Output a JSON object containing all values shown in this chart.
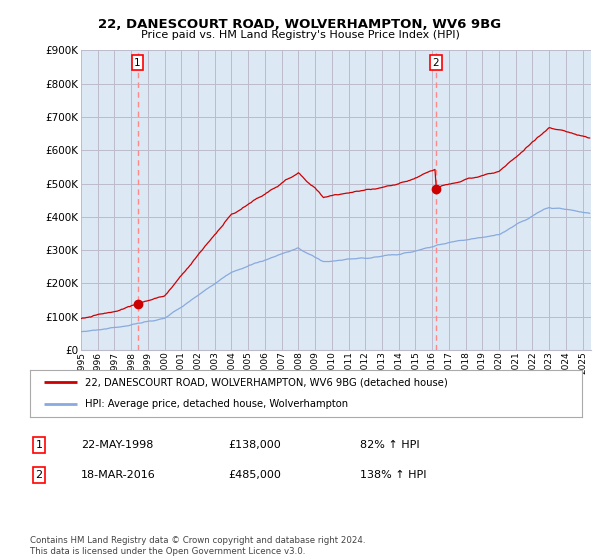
{
  "title_line1": "22, DANESCOURT ROAD, WOLVERHAMPTON, WV6 9BG",
  "title_line2": "Price paid vs. HM Land Registry's House Price Index (HPI)",
  "ylim": [
    0,
    900000
  ],
  "yticks": [
    0,
    100000,
    200000,
    300000,
    400000,
    500000,
    600000,
    700000,
    800000,
    900000
  ],
  "ytick_labels": [
    "£0",
    "£100K",
    "£200K",
    "£300K",
    "£400K",
    "£500K",
    "£600K",
    "£700K",
    "£800K",
    "£900K"
  ],
  "purchase1_date": 1998.38,
  "purchase1_price": 138000,
  "purchase2_date": 2016.21,
  "purchase2_price": 485000,
  "hpi_color": "#88aadd",
  "price_color": "#cc0000",
  "vline_color": "#ff8888",
  "plot_bg_color": "#dde8f5",
  "background_color": "#ffffff",
  "grid_color": "#bbbbcc",
  "legend_house_label": "22, DANESCOURT ROAD, WOLVERHAMPTON, WV6 9BG (detached house)",
  "legend_hpi_label": "HPI: Average price, detached house, Wolverhampton",
  "table_row1": [
    "1",
    "22-MAY-1998",
    "£138,000",
    "82% ↑ HPI"
  ],
  "table_row2": [
    "2",
    "18-MAR-2016",
    "£485,000",
    "138% ↑ HPI"
  ],
  "footer": "Contains HM Land Registry data © Crown copyright and database right 2024.\nThis data is licensed under the Open Government Licence v3.0.",
  "xmin": 1995.0,
  "xmax": 2025.5
}
